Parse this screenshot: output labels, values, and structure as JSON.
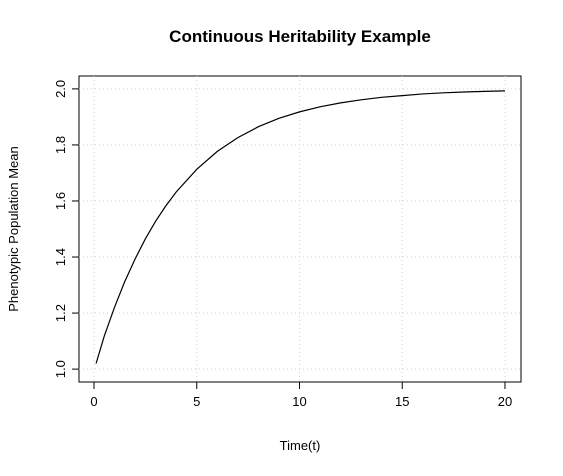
{
  "chart_data": {
    "type": "line",
    "title": "Continuous Heritability Example",
    "x_label": "Time(t)",
    "y_label": "Phenotypic Population Mean",
    "x": [
      0.1,
      0.5,
      1,
      1.5,
      2,
      2.5,
      3,
      3.5,
      4,
      5,
      6,
      7,
      8,
      9,
      10,
      11,
      12,
      13,
      14,
      15,
      16,
      17,
      18,
      19,
      20
    ],
    "values": [
      1.02,
      1.118,
      1.221,
      1.313,
      1.393,
      1.465,
      1.528,
      1.583,
      1.632,
      1.713,
      1.777,
      1.826,
      1.865,
      1.895,
      1.918,
      1.936,
      1.95,
      1.961,
      1.97,
      1.976,
      1.982,
      1.986,
      1.989,
      1.991,
      1.993
    ],
    "color": "#000000",
    "xlim": [
      -0.73,
      20.78
    ],
    "ylim": [
      0.954,
      2.046
    ],
    "xticks": [
      0,
      5,
      10,
      15,
      20
    ],
    "yticks": [
      {
        "value": 1,
        "label": "1.0"
      },
      1.2,
      1.4,
      1.6,
      1.8,
      {
        "value": 2,
        "label": "2.0"
      }
    ],
    "grid": true
  }
}
